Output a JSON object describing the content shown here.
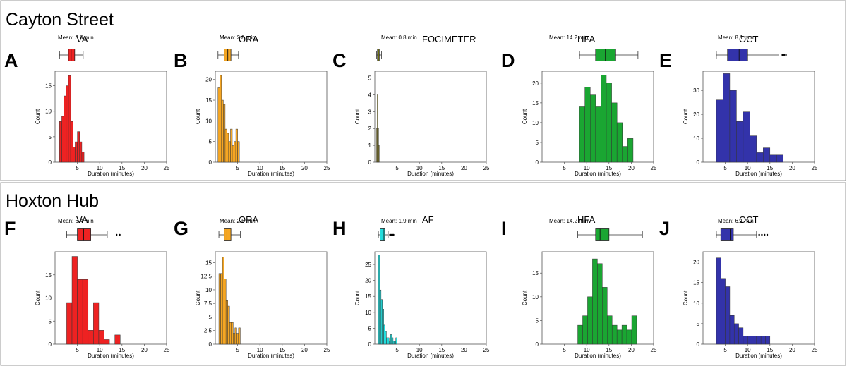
{
  "figure": {
    "sections": [
      {
        "title": "Cayton Street"
      },
      {
        "title": "Hoxton Hub"
      }
    ]
  },
  "chart_data": [
    {
      "type": "bar",
      "panel": "A",
      "section": "Cayton Street",
      "test": "VA",
      "mean_label": "Mean: 3.6 min",
      "color": "#ee2222",
      "xlabel": "Duration (minutes)",
      "ylabel": "Count",
      "xlim": [
        0,
        25
      ],
      "ylim": [
        0,
        17.85
      ],
      "x_ticks": [
        5,
        10,
        15,
        20,
        25
      ],
      "y_ticks": [
        0,
        5,
        10,
        15
      ],
      "bin_width": 0.5,
      "bin_start": 1.0,
      "values": [
        8,
        9,
        13,
        15,
        17,
        8,
        3,
        4,
        6,
        4,
        2
      ],
      "box": {
        "min": 1.0,
        "q1": 3.0,
        "median": 3.6,
        "q3": 4.4,
        "max": 6.3,
        "outliers": []
      }
    },
    {
      "type": "bar",
      "panel": "B",
      "section": "Cayton Street",
      "test": "ORA",
      "mean_label": "Mean: 2.8 min",
      "color": "#f5a623",
      "xlabel": "Duration (minutes)",
      "ylabel": "Count",
      "xlim": [
        0,
        25
      ],
      "ylim": [
        0,
        22
      ],
      "x_ticks": [
        5,
        10,
        15,
        20,
        25
      ],
      "y_ticks": [
        0,
        5,
        10,
        15,
        20
      ],
      "bin_width": 0.4,
      "bin_start": 0.6,
      "values": [
        18,
        21,
        15,
        14,
        8,
        7,
        5,
        8,
        4,
        5,
        8,
        5
      ],
      "box": {
        "min": 0.6,
        "q1": 2.0,
        "median": 2.8,
        "q3": 3.5,
        "max": 5.2,
        "outliers": []
      }
    },
    {
      "type": "bar",
      "panel": "C",
      "section": "Cayton Street",
      "test": "FOCIMETER",
      "mean_label": "Mean: 0.8 min",
      "color": "#e6e600",
      "bar_color": "#a89a1e",
      "xlabel": "Duration (minutes)",
      "ylabel": "Count",
      "xlim": [
        0,
        25
      ],
      "ylim": [
        0,
        5.4
      ],
      "x_ticks": [
        5,
        10,
        15,
        20,
        25
      ],
      "y_ticks": [
        0,
        1,
        2,
        3,
        4,
        5
      ],
      "bin_width": 0.15,
      "bin_start": 0.4,
      "values": [
        2,
        4,
        2,
        1
      ],
      "box": {
        "min": 0.4,
        "q1": 0.6,
        "median": 0.8,
        "q3": 1.0,
        "max": 1.5,
        "outliers": []
      }
    },
    {
      "type": "bar",
      "panel": "D",
      "section": "Cayton Street",
      "test": "HFA",
      "mean_label": "Mean: 14.2 min",
      "color": "#1aa632",
      "xlabel": "Duration (minutes)",
      "ylabel": "Count",
      "xlim": [
        0,
        25
      ],
      "ylim": [
        0,
        23
      ],
      "x_ticks": [
        5,
        10,
        15,
        20,
        25
      ],
      "y_ticks": [
        0,
        5,
        10,
        15,
        20
      ],
      "bin_width": 1.2,
      "bin_start": 8.4,
      "values": [
        14,
        19,
        17,
        14,
        22,
        20,
        15,
        10,
        4,
        6
      ],
      "box": {
        "min": 8.4,
        "q1": 12.0,
        "median": 14.2,
        "q3": 16.5,
        "max": 21.5,
        "outliers": []
      }
    },
    {
      "type": "bar",
      "panel": "E",
      "section": "Cayton Street",
      "test": "OCT",
      "mean_label": "Mean: 8.1 min",
      "color": "#3333aa",
      "xlabel": "Duration (minutes)",
      "ylabel": "Count",
      "xlim": [
        0,
        25
      ],
      "ylim": [
        0,
        38
      ],
      "x_ticks": [
        5,
        10,
        15,
        20,
        25
      ],
      "y_ticks": [
        0,
        10,
        20,
        30
      ],
      "bin_width": 1.5,
      "bin_start": 3.0,
      "values": [
        26,
        37,
        30,
        17,
        21,
        11,
        4,
        6,
        3,
        3
      ],
      "box": {
        "min": 3.0,
        "q1": 5.5,
        "median": 8.1,
        "q3": 10.0,
        "max": 17.0,
        "outliers": [
          17.8,
          18.2,
          18.6
        ]
      }
    },
    {
      "type": "bar",
      "panel": "F",
      "section": "Hoxton Hub",
      "test": "VA",
      "mean_label": "Mean: 6.4 min",
      "color": "#ee2222",
      "xlabel": "Duration (minutes)",
      "ylabel": "Count",
      "xlim": [
        0,
        25
      ],
      "ylim": [
        0,
        20
      ],
      "x_ticks": [
        5,
        10,
        15,
        20,
        25
      ],
      "y_ticks": [
        0,
        5,
        10,
        15
      ],
      "bin_width": 1.2,
      "bin_start": 2.6,
      "values": [
        9,
        19,
        14,
        14,
        3,
        9,
        3,
        1,
        0,
        2
      ],
      "box": {
        "min": 2.6,
        "q1": 5.0,
        "median": 6.4,
        "q3": 8.0,
        "max": 11.7,
        "outliers": [
          13.8,
          14.5
        ]
      }
    },
    {
      "type": "bar",
      "panel": "G",
      "section": "Hoxton Hub",
      "test": "ORA",
      "mean_label": "Mean: 2.6 min",
      "color": "#f5a623",
      "xlabel": "Duration (minutes)",
      "ylabel": "Count",
      "xlim": [
        0,
        25
      ],
      "ylim": [
        0,
        17
      ],
      "x_ticks": [
        5,
        10,
        15,
        20,
        25
      ],
      "y_ticks": [
        0,
        2.5,
        5.0,
        7.5,
        10.0,
        12.5,
        15.0
      ],
      "bin_width": 0.4,
      "bin_start": 0.8,
      "values": [
        13,
        13,
        16,
        12,
        8,
        7,
        4,
        4,
        2,
        3,
        2,
        3
      ],
      "box": {
        "min": 0.8,
        "q1": 2.0,
        "median": 2.6,
        "q3": 3.5,
        "max": 5.6,
        "outliers": []
      }
    },
    {
      "type": "bar",
      "panel": "H",
      "section": "Hoxton Hub",
      "test": "AF",
      "mean_label": "Mean: 1.9 min",
      "color": "#22dddd",
      "xlabel": "Duration (minutes)",
      "ylabel": "Count",
      "xlim": [
        0,
        25
      ],
      "ylim": [
        0,
        29
      ],
      "x_ticks": [
        5,
        10,
        15,
        20,
        25
      ],
      "y_ticks": [
        0,
        5,
        10,
        15,
        20,
        25
      ],
      "bin_width": 0.3,
      "bin_start": 0.8,
      "values": [
        28,
        17,
        14,
        11,
        6,
        4,
        2,
        2,
        1,
        3,
        2,
        1,
        1,
        2
      ],
      "box": {
        "min": 0.8,
        "q1": 1.2,
        "median": 1.9,
        "q3": 2.2,
        "max": 3.0,
        "outliers": [
          3.4,
          3.6,
          3.8,
          4.0,
          4.2
        ]
      }
    },
    {
      "type": "bar",
      "panel": "I",
      "section": "Hoxton Hub",
      "test": "HFA",
      "mean_label": "Mean: 14.2 min",
      "color": "#1aa632",
      "xlabel": "Duration (minutes)",
      "ylabel": "Count",
      "xlim": [
        0,
        25
      ],
      "ylim": [
        0,
        19.5
      ],
      "x_ticks": [
        5,
        10,
        15,
        20,
        25
      ],
      "y_ticks": [
        0,
        5,
        10,
        15
      ],
      "bin_width": 1.1,
      "bin_start": 8.0,
      "values": [
        4,
        6,
        10,
        18,
        17,
        12,
        6,
        4,
        3,
        4,
        3,
        6
      ],
      "box": {
        "min": 8.0,
        "q1": 12.0,
        "median": 13.0,
        "q3": 15.0,
        "max": 22.5,
        "outliers": []
      }
    },
    {
      "type": "bar",
      "panel": "J",
      "section": "Hoxton Hub",
      "test": "OCT",
      "mean_label": "Mean: 6.1 min",
      "color": "#3333aa",
      "xlabel": "Duration (minutes)",
      "ylabel": "Count",
      "xlim": [
        0,
        25
      ],
      "ylim": [
        0,
        22.5
      ],
      "x_ticks": [
        5,
        10,
        15,
        20,
        25
      ],
      "y_ticks": [
        0,
        5,
        10,
        15,
        20
      ],
      "bin_width": 1.0,
      "bin_start": 3.0,
      "values": [
        21,
        16,
        14,
        7,
        5,
        4,
        2,
        2,
        2,
        2,
        2,
        2
      ],
      "box": {
        "min": 3.0,
        "q1": 4.0,
        "median": 6.1,
        "q3": 6.8,
        "max": 12.0,
        "outliers": [
          12.6,
          13.2,
          13.8,
          14.4
        ]
      }
    }
  ]
}
